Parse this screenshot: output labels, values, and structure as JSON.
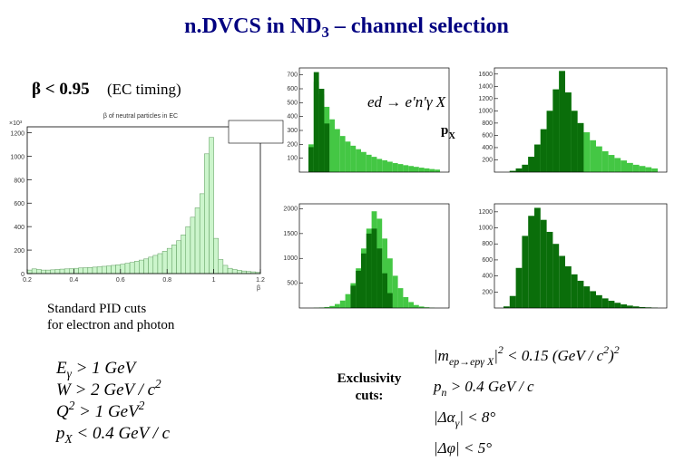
{
  "header": {
    "title": [
      {
        "t": "n.DVCS in ND"
      },
      {
        "sub": "3"
      },
      {
        "t": " – channel selection"
      }
    ]
  },
  "beta_cut": {
    "cut": "β < 0.95",
    "note": "(EC timing)"
  },
  "reaction": [
    {
      "t": "ed → e'n'γ X"
    }
  ],
  "px_label": [
    {
      "t": "p"
    },
    {
      "sub": "X"
    }
  ],
  "pid_note": [
    "Standard PID cuts",
    "for electron and photon"
  ],
  "pid_cuts": [
    [
      {
        "t": "E"
      },
      {
        "sub": "γ"
      },
      {
        "t": " > 1 GeV"
      }
    ],
    [
      {
        "t": "W > 2 GeV / c"
      },
      {
        "sup": "2"
      }
    ],
    [
      {
        "t": "Q"
      },
      {
        "sup": "2"
      },
      {
        "t": " > 1 GeV"
      },
      {
        "sup": "2"
      }
    ],
    [
      {
        "t": "p"
      },
      {
        "sub": "X"
      },
      {
        "t": " < 0.4 GeV / c"
      }
    ]
  ],
  "exclusivity_label": [
    "Exclusivity",
    "cuts:"
  ],
  "exclusivity_cuts": [
    [
      {
        "t": "|m"
      },
      {
        "sub": "ep→epγ X"
      },
      {
        "t": "|"
      },
      {
        "sup": "2"
      },
      {
        "t": " < 0.15 (GeV / c"
      },
      {
        "sup": "2"
      },
      {
        "t": ")"
      },
      {
        "sup": "2"
      }
    ],
    [
      {
        "t": "p"
      },
      {
        "sub": "n"
      },
      {
        "t": " > 0.4 GeV / c"
      }
    ],
    [
      {
        "t": "|Δα"
      },
      {
        "sub": "γ"
      },
      {
        "t": "| < 8°"
      }
    ],
    [
      {
        "t": "|Δφ| < 5°"
      }
    ]
  ],
  "main_plot": {
    "type": "histogram",
    "title": "β of neutral particles in EC",
    "x_label": "β",
    "y_exponent": "×10³",
    "color": "#ccf5cc",
    "edge_color": "#5a9a5a",
    "bins": [
      0.2,
      0.22,
      0.24,
      0.26,
      0.28,
      0.3,
      0.32,
      0.34,
      0.36,
      0.38,
      0.4,
      0.42,
      0.44,
      0.46,
      0.48,
      0.5,
      0.52,
      0.54,
      0.56,
      0.58,
      0.6,
      0.62,
      0.64,
      0.66,
      0.68,
      0.7,
      0.72,
      0.74,
      0.76,
      0.78,
      0.8,
      0.82,
      0.84,
      0.86,
      0.88,
      0.9,
      0.92,
      0.94,
      0.96,
      0.98,
      1.0,
      1.02,
      1.04,
      1.06,
      1.08,
      1.1,
      1.12,
      1.14,
      1.16,
      1.18,
      1.2
    ],
    "counts": [
      30,
      40,
      35,
      30,
      30,
      32,
      35,
      38,
      40,
      42,
      45,
      48,
      50,
      52,
      55,
      58,
      62,
      65,
      70,
      75,
      80,
      88,
      95,
      105,
      115,
      125,
      140,
      155,
      170,
      190,
      215,
      245,
      280,
      330,
      400,
      480,
      560,
      680,
      1020,
      1160,
      300,
      120,
      70,
      45,
      35,
      28,
      22,
      18,
      15,
      10
    ],
    "xlim": [
      0.2,
      1.2
    ],
    "ylim": [
      0,
      1250
    ],
    "xticks": [
      0.2,
      0.4,
      0.6,
      0.8,
      1,
      1.2
    ],
    "yticks": [
      0,
      200,
      400,
      600,
      800,
      1000,
      1200
    ]
  },
  "small_plots": [
    {
      "type": "histogram",
      "ylim": [
        0,
        750
      ],
      "yticks": [
        100,
        200,
        300,
        400,
        500,
        600,
        700
      ],
      "series": [
        {
          "color": "#44c744",
          "values": [
            200,
            650,
            560,
            470,
            380,
            310,
            260,
            220,
            190,
            165,
            145,
            125,
            110,
            95,
            85,
            75,
            65,
            58,
            50,
            44,
            38,
            32,
            27,
            22,
            18
          ]
        },
        {
          "color": "#0a6e0a",
          "values": [
            180,
            720,
            600,
            350,
            null,
            null,
            null,
            null,
            null,
            null,
            null,
            null,
            null,
            null,
            null,
            null,
            null,
            null,
            null,
            null,
            null,
            null,
            null,
            null,
            null
          ]
        }
      ]
    },
    {
      "type": "histogram",
      "ylim": [
        0,
        1700
      ],
      "yticks": [
        200,
        400,
        600,
        800,
        1000,
        1200,
        1400,
        1600
      ],
      "series": [
        {
          "color": "#44c744",
          "values": [
            0,
            20,
            60,
            120,
            250,
            450,
            700,
            1000,
            1350,
            1650,
            1300,
            1000,
            800,
            650,
            520,
            420,
            340,
            280,
            230,
            190,
            150,
            120,
            100,
            80,
            60
          ]
        },
        {
          "color": "#0a6e0a",
          "values": [
            0,
            20,
            60,
            120,
            250,
            450,
            700,
            1000,
            1350,
            1650,
            1300,
            1000,
            800,
            null,
            null,
            null,
            null,
            null,
            null,
            null,
            null,
            null,
            null,
            null,
            null
          ]
        }
      ]
    },
    {
      "type": "histogram",
      "ylim": [
        0,
        2100
      ],
      "yticks": [
        500,
        1000,
        1500,
        2000
      ],
      "series": [
        {
          "color": "#44c744",
          "values": [
            0,
            5,
            10,
            20,
            40,
            80,
            150,
            280,
            500,
            800,
            1200,
            1600,
            1950,
            1800,
            1400,
            1000,
            650,
            400,
            220,
            120,
            60,
            30,
            15,
            5,
            0
          ]
        },
        {
          "color": "#0a6e0a",
          "values": [
            null,
            null,
            null,
            null,
            null,
            null,
            null,
            null,
            450,
            750,
            1100,
            1500,
            1600,
            1200,
            700,
            300,
            null,
            null,
            null,
            null,
            null,
            null,
            null,
            null,
            null
          ]
        }
      ]
    },
    {
      "type": "histogram",
      "ylim": [
        0,
        1300
      ],
      "yticks": [
        200,
        400,
        600,
        800,
        1000,
        1200
      ],
      "series": [
        {
          "color": "#0a6e0a",
          "values": [
            20,
            150,
            500,
            900,
            1150,
            1250,
            1100,
            950,
            800,
            650,
            520,
            420,
            340,
            270,
            210,
            160,
            120,
            90,
            65,
            45,
            30,
            20,
            12,
            8,
            4
          ]
        }
      ]
    }
  ]
}
